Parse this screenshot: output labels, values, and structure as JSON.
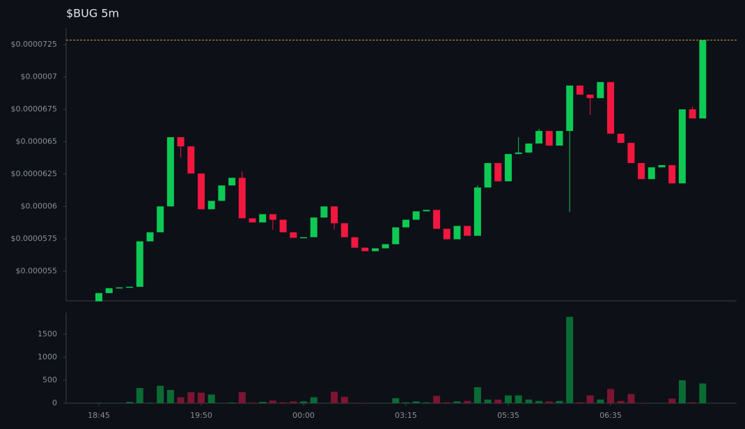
{
  "chart_data": {
    "type": "candlestick",
    "title": "$BUG 5m",
    "categories": [
      "18:45",
      null,
      null,
      null,
      null,
      null,
      null,
      null,
      null,
      null,
      "19:50",
      null,
      null,
      null,
      null,
      null,
      null,
      null,
      null,
      null,
      "00:00",
      null,
      null,
      null,
      null,
      null,
      null,
      null,
      null,
      null,
      "03:15",
      null,
      null,
      null,
      null,
      null,
      null,
      null,
      null,
      null,
      "05:35",
      null,
      null,
      null,
      null,
      null,
      null,
      null,
      null,
      null,
      "06:35",
      null,
      null,
      null,
      null,
      null,
      null,
      null,
      null,
      null
    ],
    "open": [
      5.266e-05,
      5.33e-05,
      5.368e-05,
      5.374e-05,
      5.379e-05,
      5.73e-05,
      5.8e-05,
      6e-05,
      6.535e-05,
      6.464e-05,
      6.254e-05,
      5.978e-05,
      6.043e-05,
      6.162e-05,
      6.221e-05,
      5.908e-05,
      5.876e-05,
      5.94e-05,
      5.897e-05,
      5.8e-05,
      5.757e-05,
      5.762e-05,
      5.914e-05,
      6e-05,
      5.87e-05,
      5.762e-05,
      5.681e-05,
      5.654e-05,
      5.676e-05,
      5.708e-05,
      5.838e-05,
      5.897e-05,
      5.962e-05,
      5.973e-05,
      5.827e-05,
      5.746e-05,
      5.849e-05,
      5.773e-05,
      6.146e-05,
      6.335e-05,
      6.194e-05,
      6.405e-05,
      6.416e-05,
      6.486e-05,
      6.583e-05,
      6.47e-05,
      6.583e-05,
      6.934e-05,
      6.864e-05,
      6.837e-05,
      6.961e-05,
      6.562e-05,
      6.491e-05,
      6.335e-05,
      6.211e-05,
      6.302e-05,
      6.319e-05,
      6.178e-05,
      6.75e-05,
      6.68e-05
    ],
    "high": [
      5.33e-05,
      5.368e-05,
      5.374e-05,
      5.379e-05,
      5.73e-05,
      5.8e-05,
      6e-05,
      6.535e-05,
      6.535e-05,
      6.464e-05,
      6.254e-05,
      6.043e-05,
      6.162e-05,
      6.221e-05,
      6.27e-05,
      5.908e-05,
      5.94e-05,
      5.94e-05,
      5.897e-05,
      5.8e-05,
      5.762e-05,
      5.914e-05,
      6e-05,
      6e-05,
      5.87e-05,
      5.762e-05,
      5.681e-05,
      5.676e-05,
      5.708e-05,
      5.838e-05,
      5.897e-05,
      5.962e-05,
      5.973e-05,
      5.973e-05,
      5.827e-05,
      5.849e-05,
      5.849e-05,
      6.162e-05,
      6.335e-05,
      6.335e-05,
      6.405e-05,
      6.535e-05,
      6.486e-05,
      6.6e-05,
      6.583e-05,
      6.583e-05,
      6.934e-05,
      6.934e-05,
      6.864e-05,
      6.961e-05,
      6.961e-05,
      6.562e-05,
      6.491e-05,
      6.335e-05,
      6.302e-05,
      6.319e-05,
      6.319e-05,
      6.75e-05,
      6.77e-05,
      7.285e-05
    ],
    "low": [
      5.266e-05,
      5.33e-05,
      5.368e-05,
      5.374e-05,
      5.379e-05,
      5.73e-05,
      5.8e-05,
      6e-05,
      6.378e-05,
      6.254e-05,
      5.978e-05,
      5.978e-05,
      6.043e-05,
      6.162e-05,
      5.908e-05,
      5.876e-05,
      5.876e-05,
      5.82e-05,
      5.8e-05,
      5.757e-05,
      5.757e-05,
      5.762e-05,
      5.914e-05,
      5.82e-05,
      5.762e-05,
      5.681e-05,
      5.654e-05,
      5.654e-05,
      5.676e-05,
      5.708e-05,
      5.838e-05,
      5.897e-05,
      5.962e-05,
      5.827e-05,
      5.746e-05,
      5.746e-05,
      5.773e-05,
      5.773e-05,
      6.146e-05,
      6.194e-05,
      6.194e-05,
      6.405e-05,
      6.416e-05,
      6.486e-05,
      6.47e-05,
      6.47e-05,
      5.957e-05,
      6.864e-05,
      6.707e-05,
      6.837e-05,
      6.562e-05,
      6.491e-05,
      6.335e-05,
      6.211e-05,
      6.211e-05,
      6.302e-05,
      6.178e-05,
      6.178e-05,
      6.68e-05,
      6.68e-05
    ],
    "close": [
      5.33e-05,
      5.368e-05,
      5.374e-05,
      5.379e-05,
      5.73e-05,
      5.8e-05,
      6e-05,
      6.535e-05,
      6.464e-05,
      6.254e-05,
      5.978e-05,
      6.043e-05,
      6.162e-05,
      6.221e-05,
      5.908e-05,
      5.876e-05,
      5.94e-05,
      5.897e-05,
      5.8e-05,
      5.757e-05,
      5.762e-05,
      5.914e-05,
      6e-05,
      5.87e-05,
      5.762e-05,
      5.681e-05,
      5.654e-05,
      5.676e-05,
      5.708e-05,
      5.838e-05,
      5.897e-05,
      5.962e-05,
      5.973e-05,
      5.827e-05,
      5.746e-05,
      5.849e-05,
      5.773e-05,
      6.146e-05,
      6.335e-05,
      6.194e-05,
      6.405e-05,
      6.416e-05,
      6.486e-05,
      6.583e-05,
      6.47e-05,
      6.583e-05,
      6.934e-05,
      6.864e-05,
      6.837e-05,
      6.961e-05,
      6.562e-05,
      6.491e-05,
      6.335e-05,
      6.211e-05,
      6.302e-05,
      6.319e-05,
      6.178e-05,
      6.75e-05,
      6.68e-05,
      7.285e-05
    ],
    "up_color": "#0ec954",
    "down_color": "#f2173f",
    "last_price_color": "#c9a93a",
    "ylim": [
      5.27e-05,
      7.38e-05
    ],
    "yticks": [
      {
        "value": 5.5e-05,
        "label": "$0.000055"
      },
      {
        "value": 5.75e-05,
        "label": "$0.0000575"
      },
      {
        "value": 6e-05,
        "label": "$0.00006"
      },
      {
        "value": 6.25e-05,
        "label": "$0.0000625"
      },
      {
        "value": 6.5e-05,
        "label": "$0.000065"
      },
      {
        "value": 6.75e-05,
        "label": "$0.0000675"
      },
      {
        "value": 7e-05,
        "label": "$0.00007"
      },
      {
        "value": 7.25e-05,
        "label": "$0.0000725"
      }
    ],
    "volume": {
      "values": [
        10,
        5,
        5,
        30,
        330,
        10,
        380,
        290,
        130,
        240,
        230,
        190,
        5,
        15,
        240,
        15,
        30,
        60,
        20,
        40,
        40,
        130,
        5,
        250,
        140,
        10,
        5,
        5,
        5,
        110,
        20,
        40,
        20,
        160,
        20,
        40,
        50,
        350,
        80,
        80,
        170,
        170,
        80,
        50,
        40,
        50,
        1880,
        20,
        170,
        80,
        310,
        50,
        200,
        5,
        5,
        5,
        100,
        500,
        20,
        430
      ],
      "up_color": "#0b6b34",
      "down_color": "#7d1530",
      "ylim": [
        0,
        1970
      ],
      "yticks": [
        0,
        500,
        1000,
        1500
      ]
    }
  }
}
